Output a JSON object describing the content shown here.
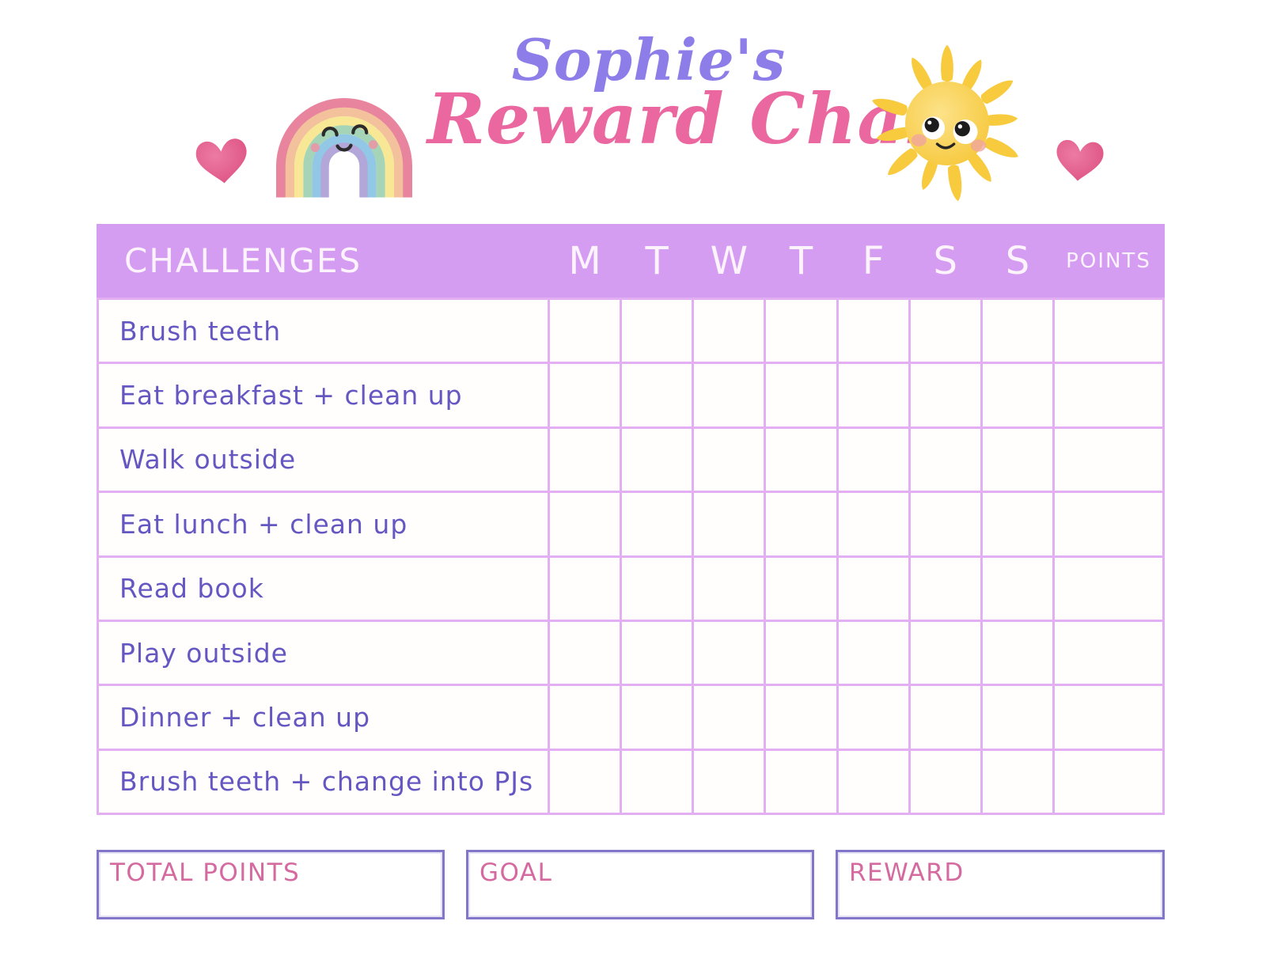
{
  "title": {
    "name_line": "Sophie's",
    "chart_line": "Reward Chart"
  },
  "table": {
    "challenges_header": "CHALLENGES",
    "days": [
      "M",
      "T",
      "W",
      "T",
      "F",
      "S",
      "S"
    ],
    "points_header": "POINTS",
    "rows": [
      "Brush teeth",
      "Eat breakfast + clean up",
      "Walk outside",
      "Eat lunch + clean up",
      "Read book",
      "Play outside",
      "Dinner + clean up",
      "Brush teeth + change into PJs"
    ]
  },
  "footer": {
    "total_points_label": "TOTAL POINTS",
    "goal_label": "GOAL",
    "reward_label": "REWARD"
  },
  "icons": {
    "left_decoration": "heart-icon",
    "title_left_decoration": "rainbow-icon",
    "title_right_decoration": "sun-icon",
    "right_decoration": "heart-icon"
  },
  "colors": {
    "header_band": "#d59df1",
    "grid_line": "#e2aff2",
    "challenge_text": "#6557c2",
    "header_text": "#ffffff",
    "title_name": "#8d7de8",
    "title_chart": "#ea67a0",
    "footer_label": "#d46a9f",
    "footer_border": "#8276c9",
    "heart_pink": "#e2598a",
    "sun_yellow": "#f8ca3e"
  }
}
